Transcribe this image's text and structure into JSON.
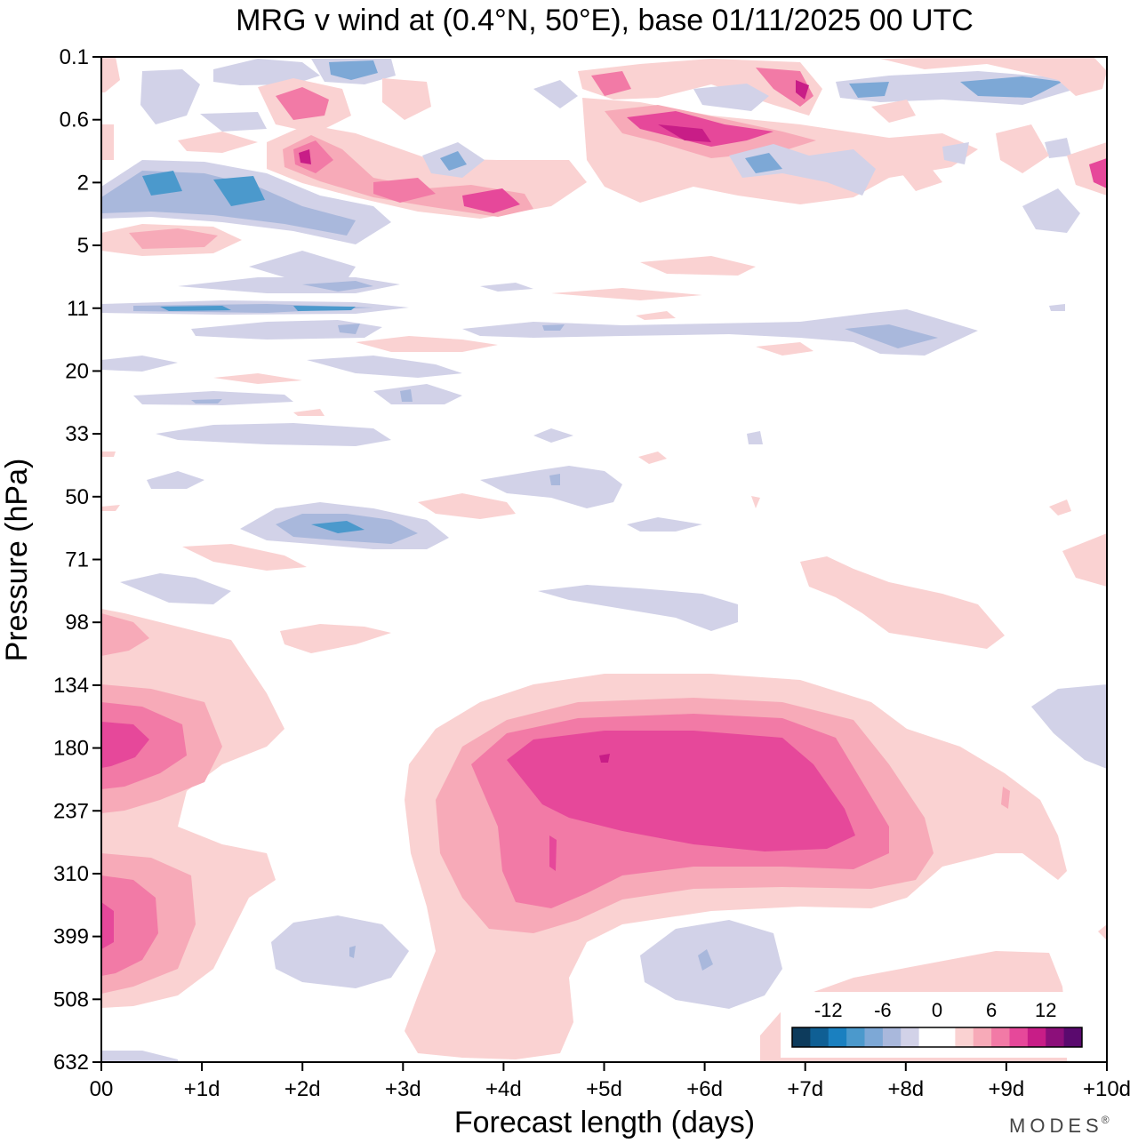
{
  "chart_data": {
    "type": "heatmap",
    "title": "MRG v wind at (0.4°N, 50°E),  base 01/11/2025  00 UTC",
    "xlabel": "Forecast length (days)",
    "ylabel": "Pressure (hPa)",
    "x_ticks": [
      "00",
      "+1d",
      "+2d",
      "+3d",
      "+4d",
      "+5d",
      "+6d",
      "+7d",
      "+8d",
      "+9d",
      "+10d"
    ],
    "x_range_days": [
      0,
      10
    ],
    "y_ticks": [
      "0.1",
      "0.6",
      "2",
      "5",
      "11",
      "20",
      "33",
      "50",
      "71",
      "98",
      "134",
      "180",
      "237",
      "310",
      "399",
      "508",
      "632"
    ],
    "colorbar": {
      "tick_labels": [
        "-12",
        "-6",
        "0",
        "6",
        "12"
      ],
      "colors": [
        "#0d3b5c",
        "#0f5f94",
        "#1a80c0",
        "#4b99cc",
        "#7da8d6",
        "#a9b8dc",
        "#d2d2e8",
        "#ffffff",
        "#ffffff",
        "#fad2d2",
        "#f7aab8",
        "#f27aa6",
        "#e6489a",
        "#c81d87",
        "#8c0f7a",
        "#5a0a6e"
      ]
    },
    "features": [
      {
        "name": "upper-tropopause-positive-max",
        "sign": "positive",
        "day_center": 5.4,
        "day_width": 4.5,
        "hpa_center": 200,
        "peak_ms": 10
      },
      {
        "name": "initial-positive-anomaly-180hPa",
        "sign": "positive",
        "day_center": 0.3,
        "day_width": 1.5,
        "hpa_center": 180,
        "peak_ms": 10
      },
      {
        "name": "initial-positive-anomaly-360hPa",
        "sign": "positive",
        "day_center": 0.2,
        "day_width": 1.3,
        "hpa_center": 360,
        "peak_ms": 9
      },
      {
        "name": "low-level-negative-day2.5",
        "sign": "negative",
        "day_center": 2.5,
        "day_width": 1.2,
        "hpa_center": 420,
        "peak_ms": -3
      },
      {
        "name": "low-level-negative-day6",
        "sign": "negative",
        "day_center": 6.0,
        "day_width": 1.3,
        "hpa_center": 430,
        "peak_ms": -3
      },
      {
        "name": "stratospheric-negative-60hPa",
        "sign": "negative",
        "day_center": 2.6,
        "day_width": 2.0,
        "hpa_center": 60,
        "peak_ms": -5
      },
      {
        "name": "upper-stratosphere-positive-2hPa",
        "sign": "positive",
        "day_center": 3.5,
        "day_width": 3.0,
        "hpa_center": 2,
        "peak_ms": 9
      },
      {
        "name": "upper-stratosphere-negative-2hPa",
        "sign": "negative",
        "day_center": 1.0,
        "day_width": 2.5,
        "hpa_center": 2.5,
        "peak_ms": -6
      },
      {
        "name": "mesosphere-positive-0.8hPa",
        "sign": "positive",
        "day_center": 6.2,
        "day_width": 2.5,
        "hpa_center": 0.8,
        "peak_ms": 10
      }
    ]
  },
  "brand": "MODES",
  "brand_mark": "®"
}
